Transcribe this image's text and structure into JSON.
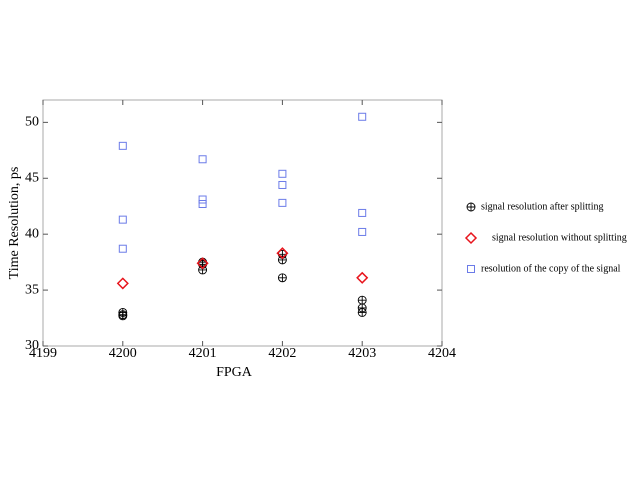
{
  "chart_data": {
    "type": "scatter",
    "xlabel": "FPGA",
    "ylabel": "Time Resolution, ps",
    "xlim": [
      4199,
      4204
    ],
    "xticks": [
      4199,
      4200,
      4201,
      4202,
      4203,
      4204
    ],
    "ylim": [
      30,
      52
    ],
    "yticks": [
      30,
      35,
      40,
      45,
      50
    ],
    "grid": false,
    "legend": "right",
    "series": [
      {
        "name": "signal resolution after splitting",
        "color": "#000000",
        "marker": "circle-plus",
        "x": [
          4200,
          4200,
          4200,
          4201,
          4201,
          4201,
          4202,
          4202,
          4202,
          4203,
          4203,
          4203
        ],
        "values": [
          33.0,
          32.8,
          32.7,
          37.5,
          37.3,
          36.8,
          38.2,
          37.7,
          36.1,
          34.1,
          33.4,
          33.0
        ]
      },
      {
        "name": "signal resolution without splitting",
        "color": "#e8141c",
        "marker": "diamond",
        "x": [
          4200,
          4201,
          4202,
          4203
        ],
        "values": [
          35.6,
          37.4,
          38.3,
          36.1
        ]
      },
      {
        "name": "resolution of the copy of the signal",
        "color": "#6b7be8",
        "marker": "square",
        "x": [
          4200,
          4200,
          4200,
          4201,
          4201,
          4201,
          4202,
          4202,
          4202,
          4203,
          4203,
          4203
        ],
        "values": [
          47.9,
          41.3,
          38.7,
          46.7,
          43.1,
          42.7,
          45.4,
          44.4,
          42.8,
          50.5,
          41.9,
          40.2
        ]
      }
    ]
  }
}
